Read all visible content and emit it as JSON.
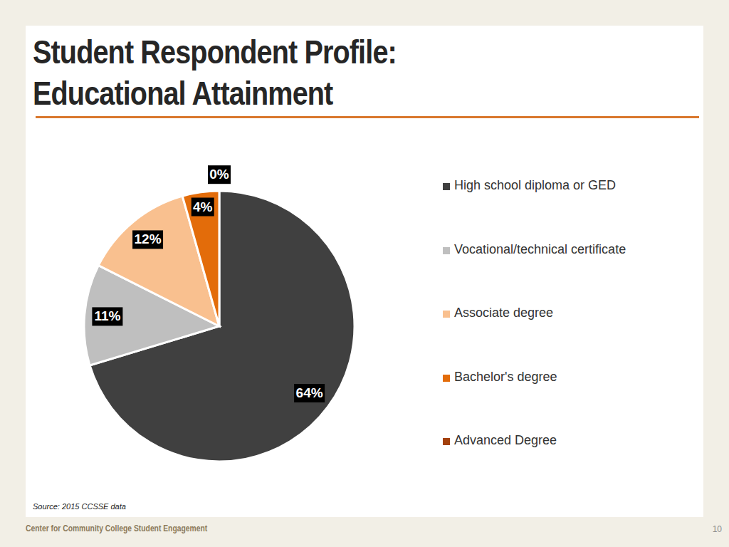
{
  "chart_data": {
    "type": "pie",
    "title": "Student Respondent Profile: Educational Attainment",
    "categories": [
      "High school diploma or GED",
      "Vocational/technical certificate",
      "Associate degree",
      "Bachelor's degree",
      "Advanced Degree"
    ],
    "values": [
      64,
      11,
      12,
      4,
      0
    ],
    "value_labels": [
      "64%",
      "11%",
      "12%",
      "4%",
      "0%"
    ],
    "colors": [
      "#404040",
      "#bfbfbf",
      "#f9c08f",
      "#e36c0a",
      "#a3410d"
    ],
    "data_labels": true,
    "legend": "right"
  },
  "source": "Source: 2015 CCSSE data",
  "footer": "Center for Community College Student Engagement",
  "page_number": 10
}
